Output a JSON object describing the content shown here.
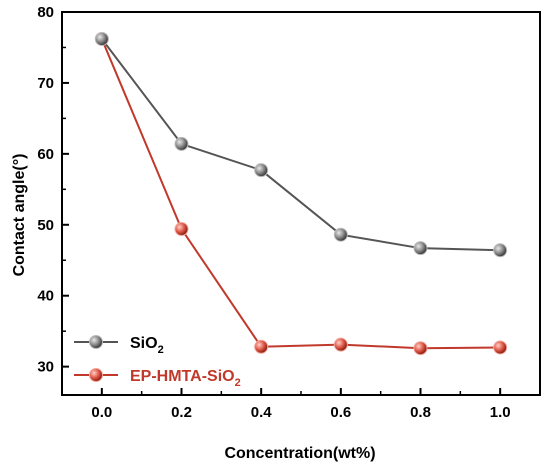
{
  "chart_data": {
    "type": "line",
    "xlabel": "Concentration(wt%)",
    "ylabel": "Contact angle(°)",
    "xlim": [
      -0.1,
      1.1
    ],
    "ylim": [
      26,
      80
    ],
    "x_ticks": [
      "0.0",
      "0.2",
      "0.4",
      "0.6",
      "0.8",
      "1.0"
    ],
    "x_tick_values": [
      0.0,
      0.2,
      0.4,
      0.6,
      0.8,
      1.0
    ],
    "y_ticks": [
      "30",
      "40",
      "50",
      "60",
      "70",
      "80"
    ],
    "y_tick_values": [
      30,
      40,
      50,
      60,
      70,
      80
    ],
    "grid": false,
    "legend_position": "bottom-left",
    "x": [
      0.0,
      0.2,
      0.4,
      0.6,
      0.8,
      1.0
    ],
    "series": [
      {
        "name_main": "SiO",
        "name_sub": "2",
        "name_color": "#000000",
        "color": "#555555",
        "marker_color": "#8c8c8c",
        "values": [
          76.2,
          61.4,
          57.7,
          48.6,
          46.7,
          46.4
        ]
      },
      {
        "name_main": "EP-HMTA-SiO",
        "name_sub": "2",
        "name_color": "#c0392b",
        "color": "#c0392b",
        "marker_color": "#e05a4a",
        "values": [
          76.2,
          49.4,
          32.8,
          33.1,
          32.6,
          32.7
        ]
      }
    ]
  }
}
